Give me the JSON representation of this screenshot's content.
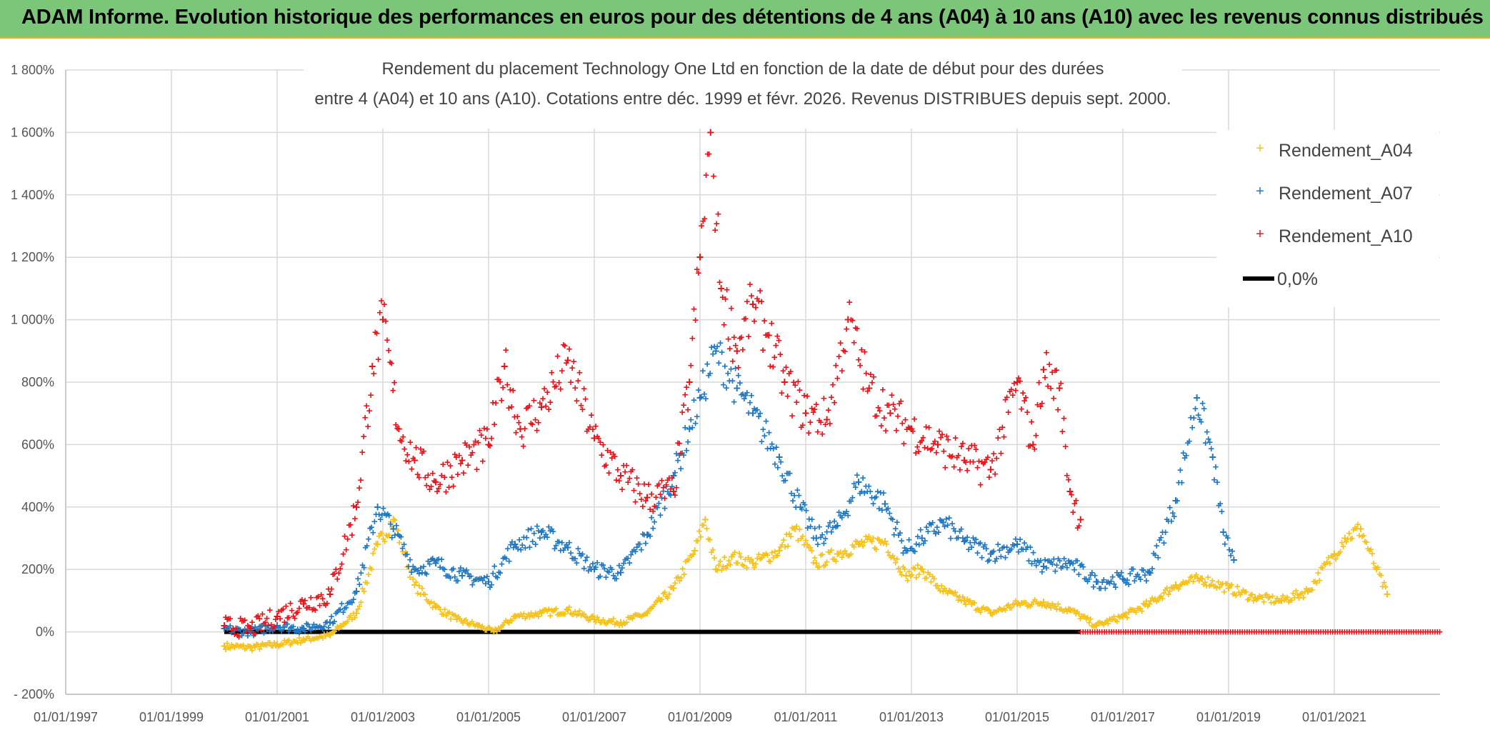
{
  "banner": {
    "title": "ADAM Informe. Evolution historique des performances en euros pour des détentions de 4 ans (A04) à 10 ans (A10) avec les revenus connus distribués"
  },
  "colors": {
    "banner_bg": "#7cc67a",
    "a04": "#f5c21b",
    "a07": "#1f78c1",
    "a10": "#e8141b",
    "zero": "#000000"
  },
  "chart_data": {
    "type": "scatter",
    "title_line1": "Rendement du placement Technology One Ltd en fonction de la date de début pour des durées",
    "title_line2": "entre 4 (A04) et 10 ans (A10). Cotations entre déc. 1999 et févr. 2026. Revenus DISTRIBUES depuis sept. 2000.",
    "x_range": [
      1997.0,
      2023.0
    ],
    "x_ticks": [
      1997,
      1999,
      2001,
      2003,
      2005,
      2007,
      2009,
      2011,
      2013,
      2015,
      2017,
      2019,
      2021
    ],
    "x_tick_labels": [
      "01/01/1997",
      "01/01/1999",
      "01/01/2001",
      "01/01/2003",
      "01/01/2005",
      "01/01/2007",
      "01/01/2009",
      "01/01/2011",
      "01/01/2013",
      "01/01/2015",
      "01/01/2017",
      "01/01/2019",
      "01/01/2021"
    ],
    "y_range": [
      -200,
      1800
    ],
    "y_ticks": [
      -200,
      0,
      200,
      400,
      600,
      800,
      1000,
      1200,
      1400,
      1600,
      1800
    ],
    "y_tick_labels": [
      "- 200%",
      "0%",
      "200%",
      "400%",
      "600%",
      "800%",
      "1 000%",
      "1 200%",
      "1 400%",
      "1 600%",
      "1 800%"
    ],
    "legend_position": "top-right",
    "series": [
      {
        "name": "Rendement_A04",
        "marker": "+",
        "x": [
          2000.0,
          2000.5,
          2001.0,
          2001.5,
          2002.0,
          2002.5,
          2002.9,
          2003.2,
          2003.6,
          2004.0,
          2004.4,
          2004.8,
          2005.1,
          2005.5,
          2006.0,
          2006.5,
          2007.0,
          2007.5,
          2008.0,
          2008.5,
          2008.9,
          2009.1,
          2009.3,
          2009.6,
          2010.0,
          2010.5,
          2010.8,
          2011.2,
          2011.6,
          2012.0,
          2012.5,
          2012.9,
          2013.2,
          2013.6,
          2014.0,
          2014.5,
          2015.0,
          2015.5,
          2016.0,
          2016.5,
          2017.0,
          2017.5,
          2018.0,
          2018.5,
          2019.0,
          2019.5,
          2020.0,
          2020.5,
          2021.0,
          2021.2,
          2021.5,
          2021.8,
          2022.0
        ],
        "values": [
          -45,
          -50,
          -40,
          -25,
          -10,
          60,
          280,
          360,
          150,
          80,
          40,
          20,
          0,
          50,
          60,
          70,
          40,
          30,
          60,
          140,
          260,
          360,
          200,
          240,
          220,
          260,
          330,
          220,
          250,
          280,
          290,
          180,
          200,
          130,
          100,
          60,
          90,
          95,
          70,
          20,
          50,
          90,
          150,
          170,
          140,
          110,
          100,
          130,
          250,
          300,
          330,
          200,
          120
        ]
      },
      {
        "name": "Rendement_A07",
        "marker": "+",
        "x": [
          2000.0,
          2000.5,
          2001.0,
          2001.5,
          2002.0,
          2002.5,
          2002.9,
          2003.2,
          2003.6,
          2004.0,
          2004.5,
          2005.0,
          2005.5,
          2006.0,
          2006.5,
          2007.0,
          2007.5,
          2008.0,
          2008.5,
          2008.8,
          2009.0,
          2009.3,
          2009.7,
          2010.0,
          2010.5,
          2010.9,
          2011.2,
          2011.6,
          2012.0,
          2012.5,
          2012.9,
          2013.2,
          2013.6,
          2014.0,
          2014.5,
          2015.0,
          2015.5,
          2016.0,
          2016.5,
          2017.0,
          2017.5,
          2018.0,
          2018.4,
          2018.7,
          2018.9,
          2019.1
        ],
        "values": [
          10,
          0,
          20,
          10,
          30,
          130,
          400,
          330,
          200,
          220,
          180,
          160,
          280,
          320,
          270,
          200,
          190,
          310,
          500,
          650,
          750,
          900,
          780,
          700,
          560,
          400,
          300,
          340,
          480,
          410,
          260,
          300,
          350,
          290,
          250,
          280,
          210,
          220,
          160,
          170,
          190,
          420,
          750,
          560,
          320,
          230
        ]
      },
      {
        "name": "Rendement_A10",
        "marker": "+",
        "x": [
          2000.0,
          2000.5,
          2001.0,
          2001.5,
          2002.0,
          2002.5,
          2002.8,
          2003.0,
          2003.3,
          2003.6,
          2004.0,
          2004.5,
          2005.0,
          2005.3,
          2005.6,
          2006.0,
          2006.5,
          2007.0,
          2007.5,
          2008.0,
          2008.5,
          2008.8,
          2009.0,
          2009.2,
          2009.4,
          2009.7,
          2010.0,
          2010.3,
          2010.6,
          2011.0,
          2011.4,
          2011.8,
          2012.2,
          2012.6,
          2013.0,
          2013.5,
          2014.0,
          2014.5,
          2015.0,
          2015.3,
          2015.5,
          2015.8,
          2016.0,
          2016.2
        ],
        "values": [
          20,
          10,
          50,
          90,
          120,
          400,
          850,
          1000,
          650,
          550,
          480,
          550,
          600,
          850,
          650,
          720,
          870,
          620,
          500,
          430,
          450,
          800,
          1200,
          1600,
          1100,
          900,
          1050,
          950,
          800,
          700,
          680,
          1000,
          780,
          700,
          650,
          600,
          550,
          520,
          800,
          600,
          840,
          780,
          450,
          360
        ]
      },
      {
        "name": "0,0%",
        "line": true,
        "x": [
          2000.0,
          2016.2
        ],
        "values": [
          0,
          0
        ]
      }
    ],
    "zero_tail": {
      "name": "Rendement_A10",
      "x_start": 2016.2,
      "x_end": 2023.0,
      "value": 0
    }
  }
}
